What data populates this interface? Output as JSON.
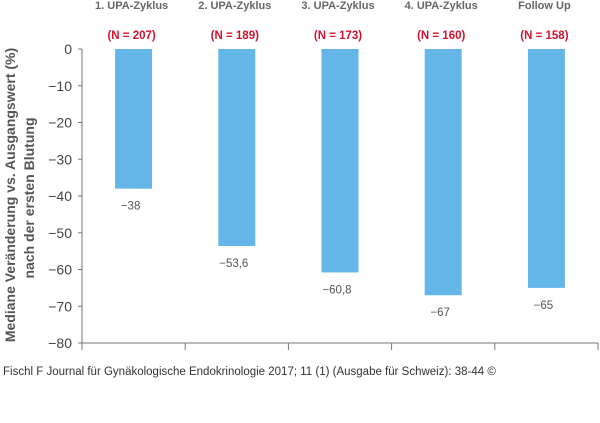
{
  "chart_data": {
    "type": "bar",
    "categories": [
      "1. UPA-Zyklus",
      "2. UPA-Zyklus",
      "3. UPA-Zyklus",
      "4. UPA-Zyklus",
      "Follow Up"
    ],
    "n_labels": [
      "(N = 207)",
      "(N = 189)",
      "(N = 173)",
      "(N = 160)",
      "(N = 158)"
    ],
    "values": [
      -38,
      -53.6,
      -60.8,
      -67,
      -65
    ],
    "value_labels": [
      "−38",
      "−53,6",
      "−60,8",
      "−67",
      "−65"
    ],
    "ylabel_line1": "Mediane Veränderung vs. Ausgangswert (%)",
    "ylabel_line2": "nach der ersten Blutung",
    "ylim": [
      -80,
      0
    ],
    "yticks": [
      0,
      -10,
      -20,
      -30,
      -40,
      -50,
      -60,
      -70,
      -80
    ],
    "ytick_labels": [
      "0",
      "−10",
      "−20",
      "−30",
      "−40",
      "−50",
      "−60",
      "−70",
      "−80"
    ],
    "grid": false,
    "colors": {
      "bar": "#64b5e8",
      "n_label": "#d2122e",
      "axis": "#777777",
      "category": "#666666",
      "value": "#555555"
    }
  },
  "footer": "Fischl F Journal für Gynäkologische Endokrinologie 2017; 11 (1) (Ausgabe für Schweiz): 38-44 ©"
}
